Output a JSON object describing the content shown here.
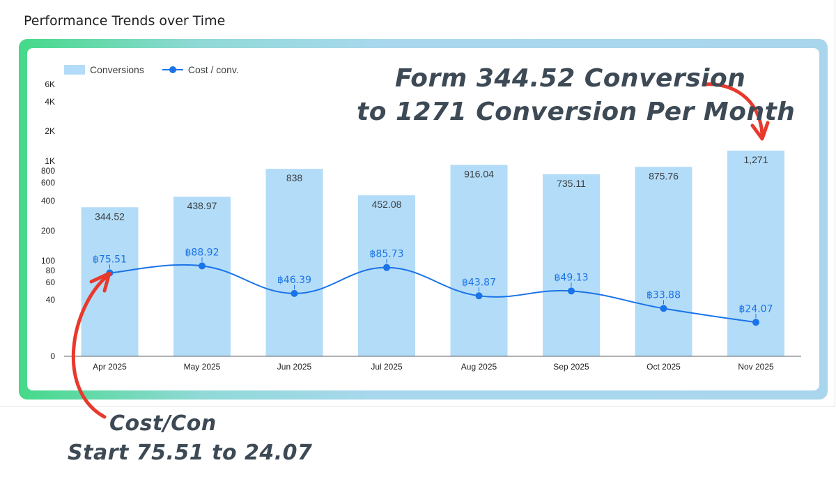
{
  "page": {
    "title": "Performance Trends over Time"
  },
  "legend": {
    "bar_label": "Conversions",
    "line_label": "Cost / conv."
  },
  "annotations": {
    "top_line1": "Form 344.52 Conversion",
    "top_line2": "to 1271 Conversion Per Month",
    "bottom_line1": "Cost/Con",
    "bottom_line2": "Start 75.51 to 24.07"
  },
  "colors": {
    "bar": "#b3dcf8",
    "line": "#1a73e8",
    "arrow": "#e8392d",
    "axis_text": "#202124",
    "frame_gradient_start": "#45d989",
    "frame_gradient_end": "#a9d6ec"
  },
  "chart_data": {
    "type": "bar",
    "title": "Performance Trends over Time",
    "categories": [
      "Apr 2025",
      "May 2025",
      "Jun 2025",
      "Jul 2025",
      "Aug 2025",
      "Sep 2025",
      "Oct 2025",
      "Nov 2025"
    ],
    "series": [
      {
        "name": "Conversions",
        "type": "bar",
        "values": [
          344.52,
          438.97,
          838,
          452.08,
          916.04,
          735.11,
          875.76,
          1271
        ],
        "labels": [
          "344.52",
          "438.97",
          "838",
          "452.08",
          "916.04",
          "735.11",
          "875.76",
          "1,271"
        ]
      },
      {
        "name": "Cost / conv.",
        "type": "line",
        "values": [
          75.51,
          88.92,
          46.39,
          85.73,
          43.87,
          49.13,
          33.88,
          24.07
        ],
        "labels": [
          "฿75.51",
          "฿88.92",
          "฿46.39",
          "฿85.73",
          "฿43.87",
          "฿49.13",
          "฿33.88",
          "฿24.07"
        ]
      }
    ],
    "y_scale": "log",
    "y_ticks": [
      0,
      40,
      60,
      80,
      100,
      200,
      400,
      600,
      800,
      1000,
      2000,
      4000,
      6000
    ],
    "y_tick_labels": [
      "0",
      "40",
      "60",
      "80",
      "100",
      "200",
      "400",
      "600",
      "800",
      "1K",
      "2K",
      "4K",
      "6K"
    ],
    "ylim": [
      0,
      6000
    ],
    "legend_position": "top-left",
    "grid": false
  }
}
